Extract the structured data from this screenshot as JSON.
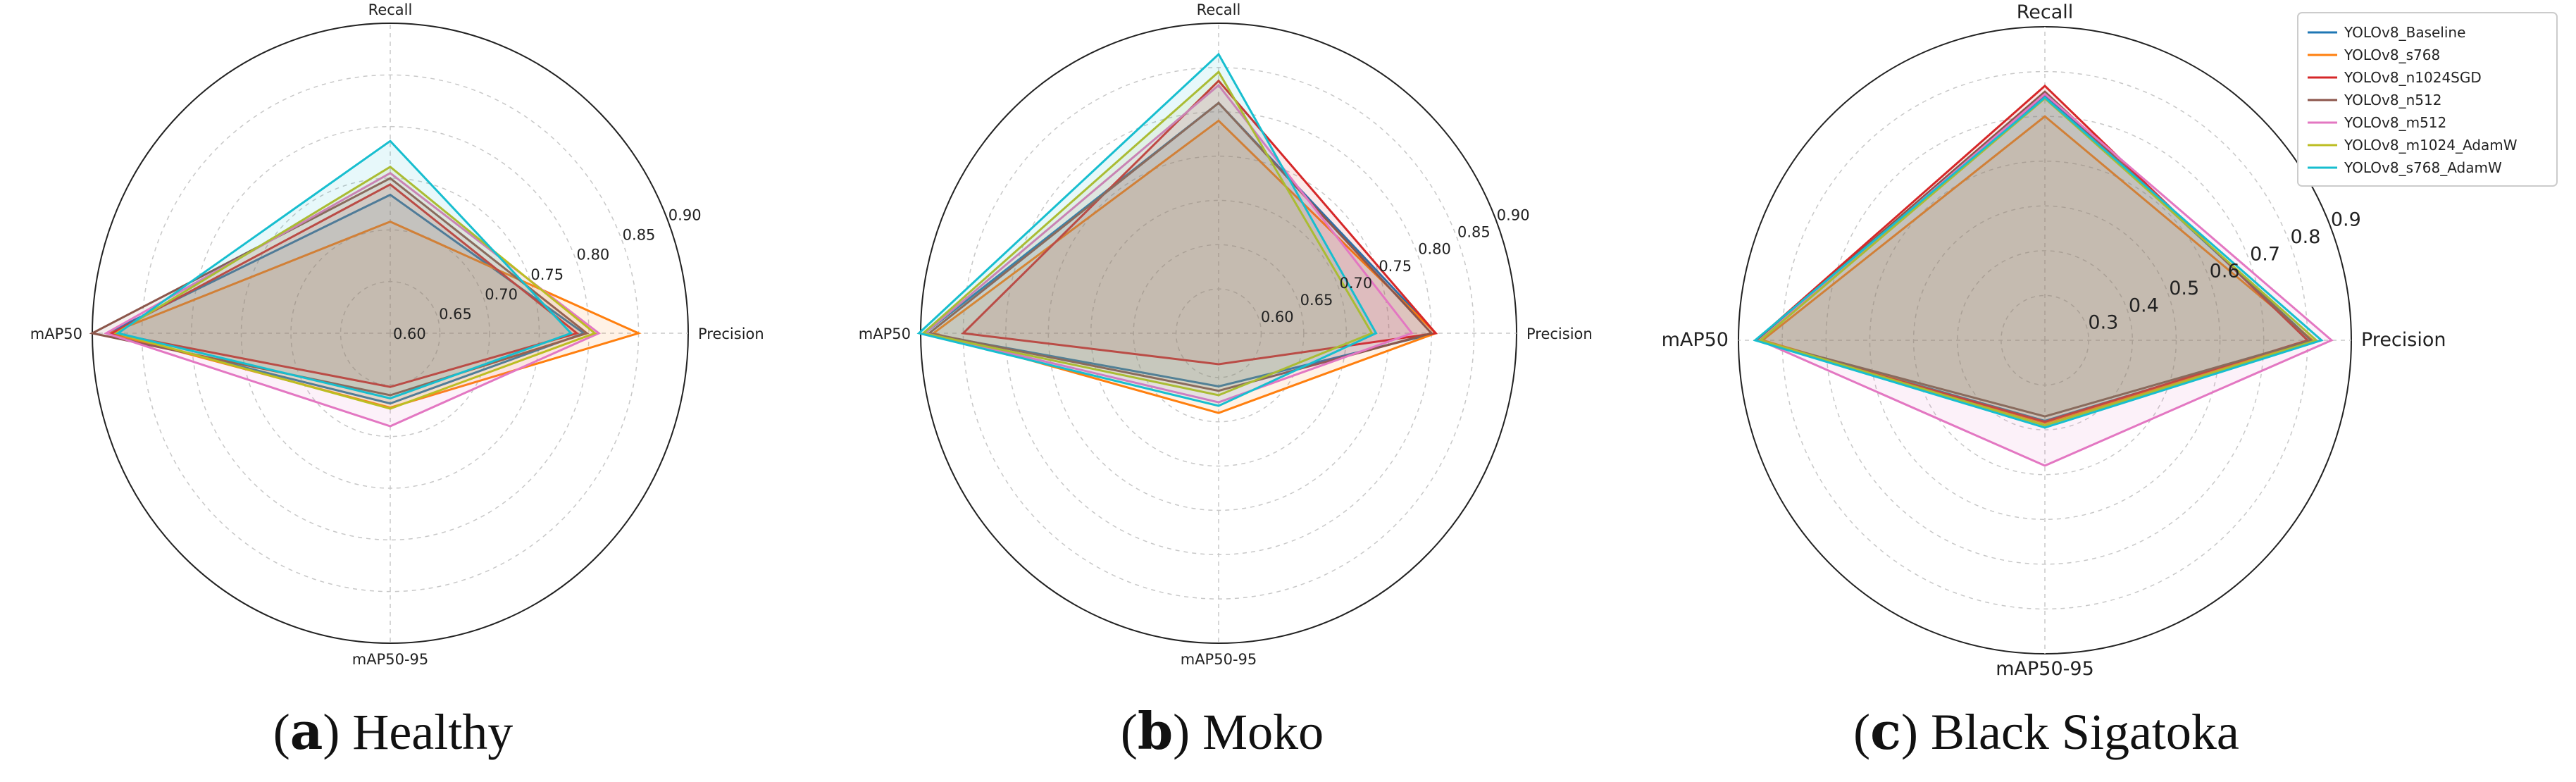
{
  "chart_data": [
    {
      "type": "radar",
      "caption_letter": "a",
      "caption_text": " Healthy",
      "axes": [
        "Precision",
        "Recall",
        "mAP50",
        "mAP50-95"
      ],
      "rlim": [
        0.6,
        0.9
      ],
      "rticks": [
        "0.60",
        "0.65",
        "0.70",
        "0.75",
        "0.80",
        "0.85",
        "0.90"
      ],
      "rtick_values": [
        0.6,
        0.65,
        0.7,
        0.75,
        0.8,
        0.85,
        0.9
      ],
      "series": [
        {
          "values": [
            0.795,
            0.734,
            0.885,
            0.668
          ]
        },
        {
          "values": [
            0.85,
            0.708,
            0.882,
            0.672
          ]
        },
        {
          "values": [
            0.788,
            0.744,
            0.88,
            0.652
          ]
        },
        {
          "values": [
            0.798,
            0.75,
            0.9,
            0.66
          ]
        },
        {
          "values": [
            0.81,
            0.755,
            0.886,
            0.69
          ]
        },
        {
          "values": [
            0.806,
            0.761,
            0.876,
            0.673
          ]
        },
        {
          "values": [
            0.782,
            0.786,
            0.874,
            0.663
          ]
        }
      ]
    },
    {
      "type": "radar",
      "caption_letter": "b",
      "caption_text": " Moko",
      "axes": [
        "Precision",
        "Recall",
        "mAP50",
        "mAP50-95"
      ],
      "rlim": [
        0.55,
        0.9
      ],
      "rticks": [
        "0.60",
        "0.65",
        "0.70",
        "0.75",
        "0.80",
        "0.85",
        "0.90"
      ],
      "rtick_values": [
        0.6,
        0.65,
        0.7,
        0.75,
        0.8,
        0.85,
        0.9
      ],
      "series": [
        {
          "values": [
            0.805,
            0.81,
            0.895,
            0.61
          ]
        },
        {
          "values": [
            0.805,
            0.79,
            0.885,
            0.64
          ]
        },
        {
          "values": [
            0.805,
            0.835,
            0.85,
            0.585
          ]
        },
        {
          "values": [
            0.8,
            0.81,
            0.89,
            0.615
          ]
        },
        {
          "values": [
            0.777,
            0.83,
            0.895,
            0.628
          ]
        },
        {
          "values": [
            0.73,
            0.845,
            0.897,
            0.62
          ]
        },
        {
          "values": [
            0.735,
            0.865,
            0.902,
            0.632
          ]
        }
      ]
    },
    {
      "type": "radar",
      "caption_letter": "c",
      "caption_text": " Black Sigatoka",
      "axes": [
        "Precision",
        "Recall",
        "mAP50",
        "mAP50-95"
      ],
      "rlim": [
        0.2,
        0.9
      ],
      "rticks": [
        "0.3",
        "0.4",
        "0.5",
        "0.6",
        "0.7",
        "0.8",
        "0.9"
      ],
      "rtick_values": [
        0.3,
        0.4,
        0.5,
        0.6,
        0.7,
        0.8,
        0.9
      ],
      "series": [
        {
          "values": [
            0.81,
            0.748,
            0.855,
            0.38
          ]
        },
        {
          "values": [
            0.812,
            0.7,
            0.845,
            0.385
          ]
        },
        {
          "values": [
            0.8,
            0.768,
            0.86,
            0.382
          ]
        },
        {
          "values": [
            0.808,
            0.755,
            0.858,
            0.37
          ]
        },
        {
          "values": [
            0.855,
            0.75,
            0.852,
            0.48
          ]
        },
        {
          "values": [
            0.82,
            0.74,
            0.85,
            0.39
          ]
        },
        {
          "values": [
            0.832,
            0.742,
            0.862,
            0.395
          ]
        }
      ]
    }
  ],
  "legend": {
    "placement": "top-right",
    "entries": [
      {
        "name": "YOLOv8_Baseline",
        "color": "#1f77b4"
      },
      {
        "name": "YOLOv8_s768",
        "color": "#ff7f0e"
      },
      {
        "name": "YOLOv8_n1024SGD",
        "color": "#d62728"
      },
      {
        "name": "YOLOv8_n512",
        "color": "#8c564b"
      },
      {
        "name": "YOLOv8_m512",
        "color": "#e377c2"
      },
      {
        "name": "YOLOv8_m1024_AdamW",
        "color": "#bcbd22"
      },
      {
        "name": "YOLOv8_s768_AdamW",
        "color": "#17becf"
      }
    ]
  }
}
